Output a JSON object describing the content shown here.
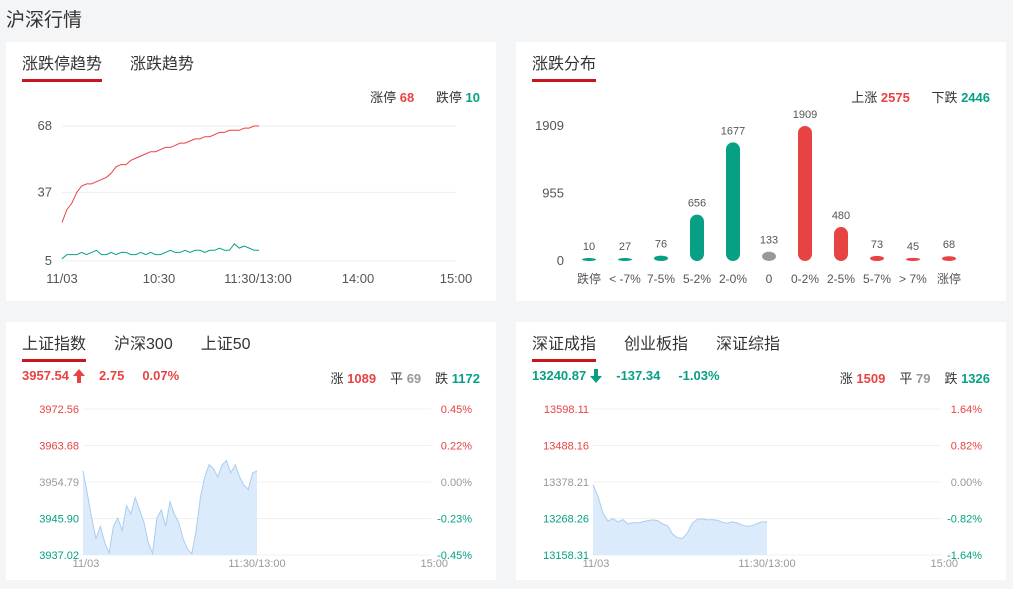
{
  "page_title": "沪深行情",
  "colors": {
    "up": "#e84343",
    "down": "#07a084",
    "flat": "#999999",
    "accent": "#c8161d",
    "fill": "#dcebfb",
    "line": "#a9cdf1"
  },
  "panel1": {
    "tabs": [
      "涨跌停趋势",
      "涨跌趋势"
    ],
    "limit_up_label": "涨停",
    "limit_up_value": "68",
    "limit_down_label": "跌停",
    "limit_down_value": "10",
    "y_ticks": [
      "68",
      "37",
      "5"
    ],
    "x_ticks": [
      "11/03",
      "10:30",
      "11:30/13:00",
      "14:00",
      "15:00"
    ]
  },
  "panel2": {
    "tabs": [
      "涨跌分布"
    ],
    "up_label": "上涨",
    "up_value": "2575",
    "down_label": "下跌",
    "down_value": "2446",
    "y_ticks": [
      "1909",
      "955",
      "0"
    ]
  },
  "panel3": {
    "tabs": [
      "上证指数",
      "沪深300",
      "上证50"
    ],
    "price": "3957.54",
    "change": "2.75",
    "pct": "0.07%",
    "up_label": "涨",
    "up_value": "1089",
    "flat_label": "平",
    "flat_value": "69",
    "down_label": "跌",
    "down_value": "1172",
    "y_left": [
      "3972.56",
      "3963.68",
      "3954.79",
      "3945.90",
      "3937.02"
    ],
    "y_right": [
      "0.45%",
      "0.22%",
      "0.00%",
      "-0.23%",
      "-0.45%"
    ],
    "x_ticks": [
      "11/03",
      "11:30/13:00",
      "15:00"
    ]
  },
  "panel4": {
    "tabs": [
      "深证成指",
      "创业板指",
      "深证综指"
    ],
    "price": "13240.87",
    "change": "-137.34",
    "pct": "-1.03%",
    "up_label": "涨",
    "up_value": "1509",
    "flat_label": "平",
    "flat_value": "79",
    "down_label": "跌",
    "down_value": "1326",
    "y_left": [
      "13598.11",
      "13488.16",
      "13378.21",
      "13268.26",
      "13158.31"
    ],
    "y_right": [
      "1.64%",
      "0.82%",
      "0.00%",
      "-0.82%",
      "-1.64%"
    ],
    "x_ticks": [
      "11/03",
      "11:30/13:00",
      "15:00"
    ]
  },
  "chart_data": [
    {
      "type": "line",
      "series": [
        {
          "name": "涨停",
          "color": "#e84343",
          "x": [
            0,
            3,
            6,
            9,
            12,
            15,
            18,
            21,
            24,
            27,
            30,
            33,
            36,
            39,
            42,
            45,
            48,
            51,
            54,
            57,
            60,
            63,
            66,
            69,
            72,
            75,
            78,
            81,
            84,
            87,
            90,
            93,
            96,
            99,
            102,
            105,
            108,
            111,
            114,
            117,
            120
          ],
          "values": [
            23,
            29,
            32,
            37,
            40,
            41,
            41,
            42,
            43,
            44,
            46,
            49,
            50,
            50,
            52,
            53,
            54,
            55,
            56,
            56,
            57,
            58,
            58,
            59,
            60,
            60,
            61,
            62,
            62,
            63,
            63,
            64,
            65,
            65,
            66,
            66,
            66,
            67,
            67,
            68,
            68
          ]
        },
        {
          "name": "跌停",
          "color": "#07a084",
          "x": [
            0,
            3,
            6,
            9,
            12,
            15,
            18,
            21,
            24,
            27,
            30,
            33,
            36,
            39,
            42,
            45,
            48,
            51,
            54,
            57,
            60,
            63,
            66,
            69,
            72,
            75,
            78,
            81,
            84,
            87,
            90,
            93,
            96,
            99,
            102,
            105,
            108,
            111,
            114,
            117,
            120
          ],
          "values": [
            6,
            8,
            8,
            8,
            9,
            8,
            9,
            10,
            8,
            8,
            9,
            8,
            9,
            9,
            8,
            8,
            9,
            8,
            9,
            8,
            8,
            9,
            10,
            9,
            9,
            10,
            9,
            10,
            10,
            9,
            10,
            10,
            11,
            10,
            10,
            13,
            11,
            12,
            11,
            10,
            10
          ]
        }
      ],
      "x_range": [
        0,
        240
      ],
      "ylim": [
        5,
        68
      ]
    },
    {
      "type": "bar",
      "categories": [
        "跌停",
        "< -7%",
        "7-5%",
        "5-2%",
        "2-0%",
        "0",
        "0-2%",
        "2-5%",
        "5-7%",
        "> 7%",
        "涨停"
      ],
      "values": [
        10,
        27,
        76,
        656,
        1677,
        133,
        1909,
        480,
        73,
        45,
        68
      ],
      "colors": [
        "#07a084",
        "#07a084",
        "#07a084",
        "#07a084",
        "#07a084",
        "#999999",
        "#e84343",
        "#e84343",
        "#e84343",
        "#e84343",
        "#e84343"
      ],
      "ylim": [
        0,
        1909
      ]
    },
    {
      "type": "area",
      "values": [
        3957.5,
        3952,
        3946,
        3941,
        3944,
        3940,
        3937.5,
        3944,
        3946,
        3943,
        3949,
        3947,
        3951,
        3948,
        3945,
        3940,
        3937.4,
        3946,
        3948,
        3944,
        3950,
        3947,
        3945,
        3941,
        3938.5,
        3937.3,
        3943,
        3951,
        3956,
        3959,
        3958,
        3956,
        3959,
        3960,
        3957,
        3959,
        3956,
        3954,
        3953,
        3957,
        3957.5
      ],
      "ylim": [
        3937.02,
        3972.56
      ],
      "x_range": [
        0,
        240
      ]
    },
    {
      "type": "area",
      "values": [
        13370,
        13335,
        13285,
        13260,
        13268,
        13258,
        13265,
        13252,
        13256,
        13255,
        13258,
        13262,
        13264,
        13262,
        13252,
        13246,
        13222,
        13210,
        13208,
        13225,
        13255,
        13266,
        13267,
        13264,
        13265,
        13263,
        13257,
        13254,
        13258,
        13255,
        13248,
        13245,
        13246,
        13253,
        13258,
        13258
      ],
      "ylim": [
        13158.31,
        13598.11
      ],
      "x_range": [
        0,
        240
      ]
    }
  ]
}
